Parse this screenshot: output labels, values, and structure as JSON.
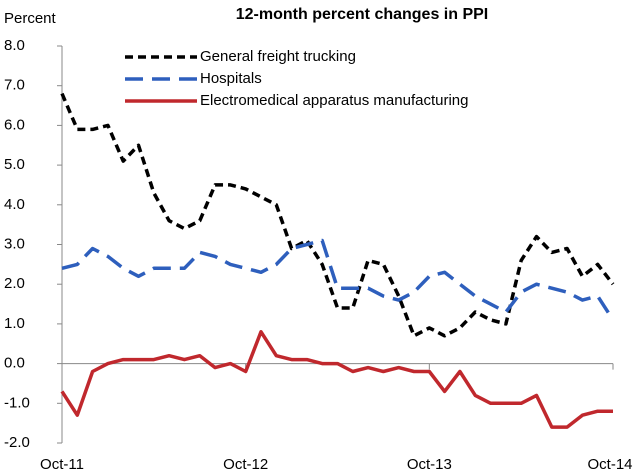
{
  "chart_data": {
    "type": "line",
    "title": "12-month percent changes in PPI",
    "y_label": "Percent",
    "categories": [
      "Oct-11",
      null,
      null,
      null,
      null,
      null,
      null,
      null,
      null,
      null,
      null,
      null,
      "Oct-12",
      null,
      null,
      null,
      null,
      null,
      null,
      null,
      null,
      null,
      null,
      null,
      "Oct-13",
      null,
      null,
      null,
      null,
      null,
      null,
      null,
      null,
      null,
      null,
      null,
      "Oct-14"
    ],
    "series": [
      {
        "name": "General freight trucking",
        "color": "#000000",
        "values": [
          6.8,
          5.9,
          5.9,
          6.0,
          5.1,
          5.5,
          4.3,
          3.6,
          3.4,
          3.6,
          4.5,
          4.5,
          4.4,
          4.2,
          4.0,
          2.9,
          3.1,
          2.5,
          1.4,
          1.4,
          2.6,
          2.5,
          1.7,
          0.7,
          0.9,
          0.7,
          0.9,
          1.3,
          1.1,
          1.0,
          2.6,
          3.2,
          2.8,
          2.9,
          2.2,
          2.5,
          2.0
        ]
      },
      {
        "name": "Hospitals",
        "color": "#2e5fbd",
        "values": [
          2.4,
          2.5,
          2.9,
          2.7,
          2.4,
          2.2,
          2.4,
          2.4,
          2.4,
          2.8,
          2.7,
          2.5,
          2.4,
          2.3,
          2.5,
          2.9,
          3.0,
          3.1,
          1.9,
          1.9,
          1.9,
          1.7,
          1.6,
          1.8,
          2.2,
          2.3,
          2.0,
          1.7,
          1.5,
          1.3,
          1.8,
          2.0,
          1.9,
          1.8,
          1.6,
          1.7,
          1.1
        ]
      },
      {
        "name": "Electromedical apparatus manufacturing",
        "color": "#c0282d",
        "values": [
          -0.7,
          -1.3,
          -0.2,
          0.0,
          0.1,
          0.1,
          0.1,
          0.2,
          0.1,
          0.2,
          -0.1,
          0.0,
          -0.2,
          0.8,
          0.2,
          0.1,
          0.1,
          0.0,
          0.0,
          -0.2,
          -0.1,
          -0.2,
          -0.1,
          -0.2,
          -0.2,
          -0.7,
          -0.2,
          -0.8,
          -1.0,
          -1.0,
          -1.0,
          -0.8,
          -1.6,
          -1.6,
          -1.3,
          -1.2,
          -1.2
        ]
      }
    ],
    "ylim": [
      -2,
      8
    ],
    "yticks": [
      {
        "value": -2,
        "label": "-2.0"
      },
      {
        "value": -1,
        "label": "-1.0"
      },
      {
        "value": 0,
        "label": "0.0"
      },
      {
        "value": 1,
        "label": "1.0"
      },
      {
        "value": 2,
        "label": "2.0"
      },
      {
        "value": 3,
        "label": "3.0"
      },
      {
        "value": 4,
        "label": "4.0"
      },
      {
        "value": 5,
        "label": "5.0"
      },
      {
        "value": 6,
        "label": "6.0"
      },
      {
        "value": 7,
        "label": "7.0"
      },
      {
        "value": 8,
        "label": "8.0"
      }
    ],
    "legend": "upper left"
  }
}
